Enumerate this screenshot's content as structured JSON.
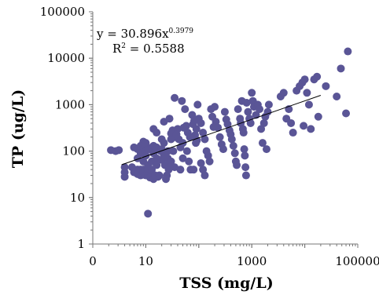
{
  "chart_data": {
    "type": "scatter",
    "xlabel": "TSS (mg/L)",
    "ylabel": "TP (ug/L)",
    "x_scale": "log",
    "y_scale": "log",
    "xlim": [
      1,
      100000
    ],
    "ylim": [
      1,
      100000
    ],
    "x_ticks": [
      "0",
      "10",
      "1000",
      "100000"
    ],
    "y_ticks": [
      "1",
      "10",
      "100",
      "1000",
      "10000",
      "100000"
    ],
    "grid": false,
    "legend": "none",
    "marker_color": "#5a5596",
    "trendline": {
      "equation_text": "y = 30.896x",
      "exponent_text": "0.3979",
      "r2_label": "R",
      "r2_sup": "2",
      "r2_value": " = 0.5588",
      "coefficient": 30.896,
      "exponent": 0.3979,
      "x_range": [
        3.5,
        20000
      ]
    },
    "series": [
      {
        "points": [
          [
            2.2,
            105
          ],
          [
            2.7,
            100
          ],
          [
            3.1,
            105
          ],
          [
            4,
            45
          ],
          [
            4,
            35
          ],
          [
            4,
            28
          ],
          [
            5.5,
            45
          ],
          [
            6,
            40
          ],
          [
            6,
            35
          ],
          [
            6,
            120
          ],
          [
            7,
            110
          ],
          [
            7,
            70
          ],
          [
            7,
            40
          ],
          [
            7,
            32
          ],
          [
            8,
            90
          ],
          [
            8,
            130
          ],
          [
            8,
            40
          ],
          [
            8,
            30
          ],
          [
            9,
            160
          ],
          [
            9,
            150
          ],
          [
            9,
            130
          ],
          [
            9,
            90
          ],
          [
            9,
            60
          ],
          [
            9,
            40
          ],
          [
            9,
            35
          ],
          [
            10,
            150
          ],
          [
            10,
            125
          ],
          [
            10,
            100
          ],
          [
            10,
            80
          ],
          [
            10,
            30
          ],
          [
            11,
            110
          ],
          [
            11,
            50
          ],
          [
            11,
            40
          ],
          [
            11,
            30
          ],
          [
            12,
            110
          ],
          [
            12,
            30
          ],
          [
            12,
            27
          ],
          [
            13,
            120
          ],
          [
            13,
            60
          ],
          [
            13,
            40
          ],
          [
            14,
            300
          ],
          [
            14,
            130
          ],
          [
            14,
            90
          ],
          [
            15,
            30
          ],
          [
            16,
            250
          ],
          [
            16,
            120
          ],
          [
            16,
            70
          ],
          [
            16,
            50
          ],
          [
            17,
            28
          ],
          [
            18,
            30
          ],
          [
            19,
            100
          ],
          [
            20,
            180
          ],
          [
            20,
            110
          ],
          [
            20,
            65
          ],
          [
            22,
            430
          ],
          [
            22,
            150
          ],
          [
            22,
            80
          ],
          [
            23,
            50
          ],
          [
            25,
            30
          ],
          [
            26,
            100
          ],
          [
            26,
            70
          ],
          [
            27,
            40
          ],
          [
            28,
            500
          ],
          [
            30,
            180
          ],
          [
            30,
            60
          ],
          [
            32,
            280
          ],
          [
            33,
            100
          ],
          [
            35,
            1400
          ],
          [
            35,
            200
          ],
          [
            35,
            45
          ],
          [
            40,
            300
          ],
          [
            42,
            180
          ],
          [
            45,
            120
          ],
          [
            48,
            1200
          ],
          [
            50,
            150
          ],
          [
            50,
            70
          ],
          [
            55,
            800
          ],
          [
            58,
            350
          ],
          [
            60,
            100
          ],
          [
            62,
            250
          ],
          [
            65,
            60
          ],
          [
            70,
            40
          ],
          [
            75,
            600
          ],
          [
            78,
            380
          ],
          [
            82,
            450
          ],
          [
            85,
            220
          ],
          [
            88,
            150
          ],
          [
            90,
            300
          ],
          [
            95,
            1000
          ],
          [
            100,
            500
          ],
          [
            110,
            400
          ],
          [
            120,
            250
          ],
          [
            130,
            180
          ],
          [
            140,
            100
          ],
          [
            150,
            80
          ],
          [
            160,
            60
          ],
          [
            170,
            800
          ],
          [
            180,
            550
          ],
          [
            190,
            330
          ],
          [
            200,
            900
          ],
          [
            210,
            430
          ],
          [
            230,
            320
          ],
          [
            250,
            200
          ],
          [
            270,
            140
          ],
          [
            290,
            110
          ],
          [
            310,
            700
          ],
          [
            330,
            480
          ],
          [
            350,
            380
          ],
          [
            380,
            280
          ],
          [
            400,
            230
          ],
          [
            420,
            180
          ],
          [
            450,
            130
          ],
          [
            480,
            90
          ],
          [
            500,
            60
          ],
          [
            520,
            50
          ],
          [
            550,
            800
          ],
          [
            600,
            500
          ],
          [
            620,
            400
          ],
          [
            650,
            1200
          ],
          [
            680,
            300
          ],
          [
            700,
            250
          ],
          [
            720,
            110
          ],
          [
            740,
            80
          ],
          [
            760,
            45
          ],
          [
            780,
            30
          ],
          [
            800,
            1100
          ],
          [
            850,
            700
          ],
          [
            900,
            500
          ],
          [
            950,
            400
          ],
          [
            1000,
            1800
          ],
          [
            1050,
            1200
          ],
          [
            1100,
            900
          ],
          [
            1200,
            600
          ],
          [
            1300,
            1000
          ],
          [
            1400,
            800
          ],
          [
            1500,
            300
          ],
          [
            1600,
            150
          ],
          [
            1700,
            400
          ],
          [
            1800,
            550
          ],
          [
            1900,
            110
          ],
          [
            2000,
            700
          ],
          [
            2100,
            1000
          ],
          [
            3500,
            1500
          ],
          [
            4000,
            1800
          ],
          [
            5000,
            800
          ],
          [
            5500,
            400
          ],
          [
            6000,
            250
          ],
          [
            4500,
            500
          ],
          [
            7000,
            2000
          ],
          [
            8000,
            2500
          ],
          [
            9000,
            3000
          ],
          [
            10000,
            3500
          ],
          [
            11000,
            1800
          ],
          [
            12000,
            1000
          ],
          [
            9500,
            350
          ],
          [
            13000,
            300
          ],
          [
            15000,
            3500
          ],
          [
            17000,
            4000
          ],
          [
            18000,
            550
          ],
          [
            25000,
            2500
          ],
          [
            40000,
            1500
          ],
          [
            48000,
            6000
          ],
          [
            60000,
            650
          ],
          [
            65000,
            14000
          ],
          [
            11,
            4.5
          ],
          [
            14,
            25
          ],
          [
            24,
            25
          ],
          [
            28,
            45
          ],
          [
            45,
            40
          ],
          [
            80,
            40
          ],
          [
            110,
            55
          ],
          [
            120,
            40
          ],
          [
            130,
            30
          ],
          [
            30,
            240
          ],
          [
            38,
            230
          ],
          [
            52,
            320
          ],
          [
            68,
            200
          ],
          [
            92,
            170
          ]
        ]
      }
    ]
  }
}
